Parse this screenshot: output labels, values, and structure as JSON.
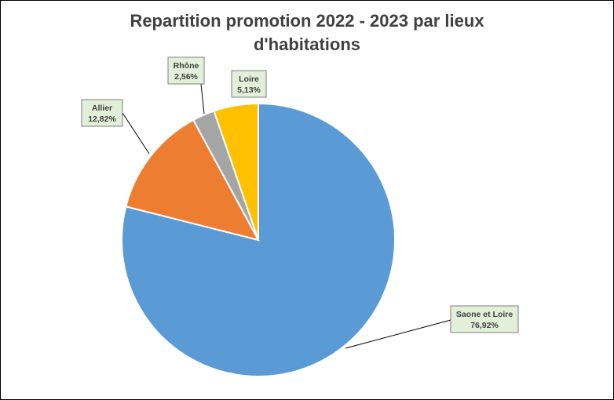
{
  "chart_data": {
    "type": "pie",
    "title_line1": "Repartition promotion 2022 - 2023 par lieux",
    "title_line2": "d'habitations",
    "categories": [
      "Saone et Loire",
      "Allier",
      "Rhône",
      "Loire"
    ],
    "values": [
      76.92,
      12.82,
      2.56,
      5.13
    ],
    "value_labels": [
      "76,92%",
      "12,82%",
      "2,56%",
      "5,13%"
    ],
    "colors": [
      "#5b9bd5",
      "#ed7d31",
      "#a5a5a5",
      "#ffc000"
    ],
    "label_box_color": "#e2efd9"
  }
}
